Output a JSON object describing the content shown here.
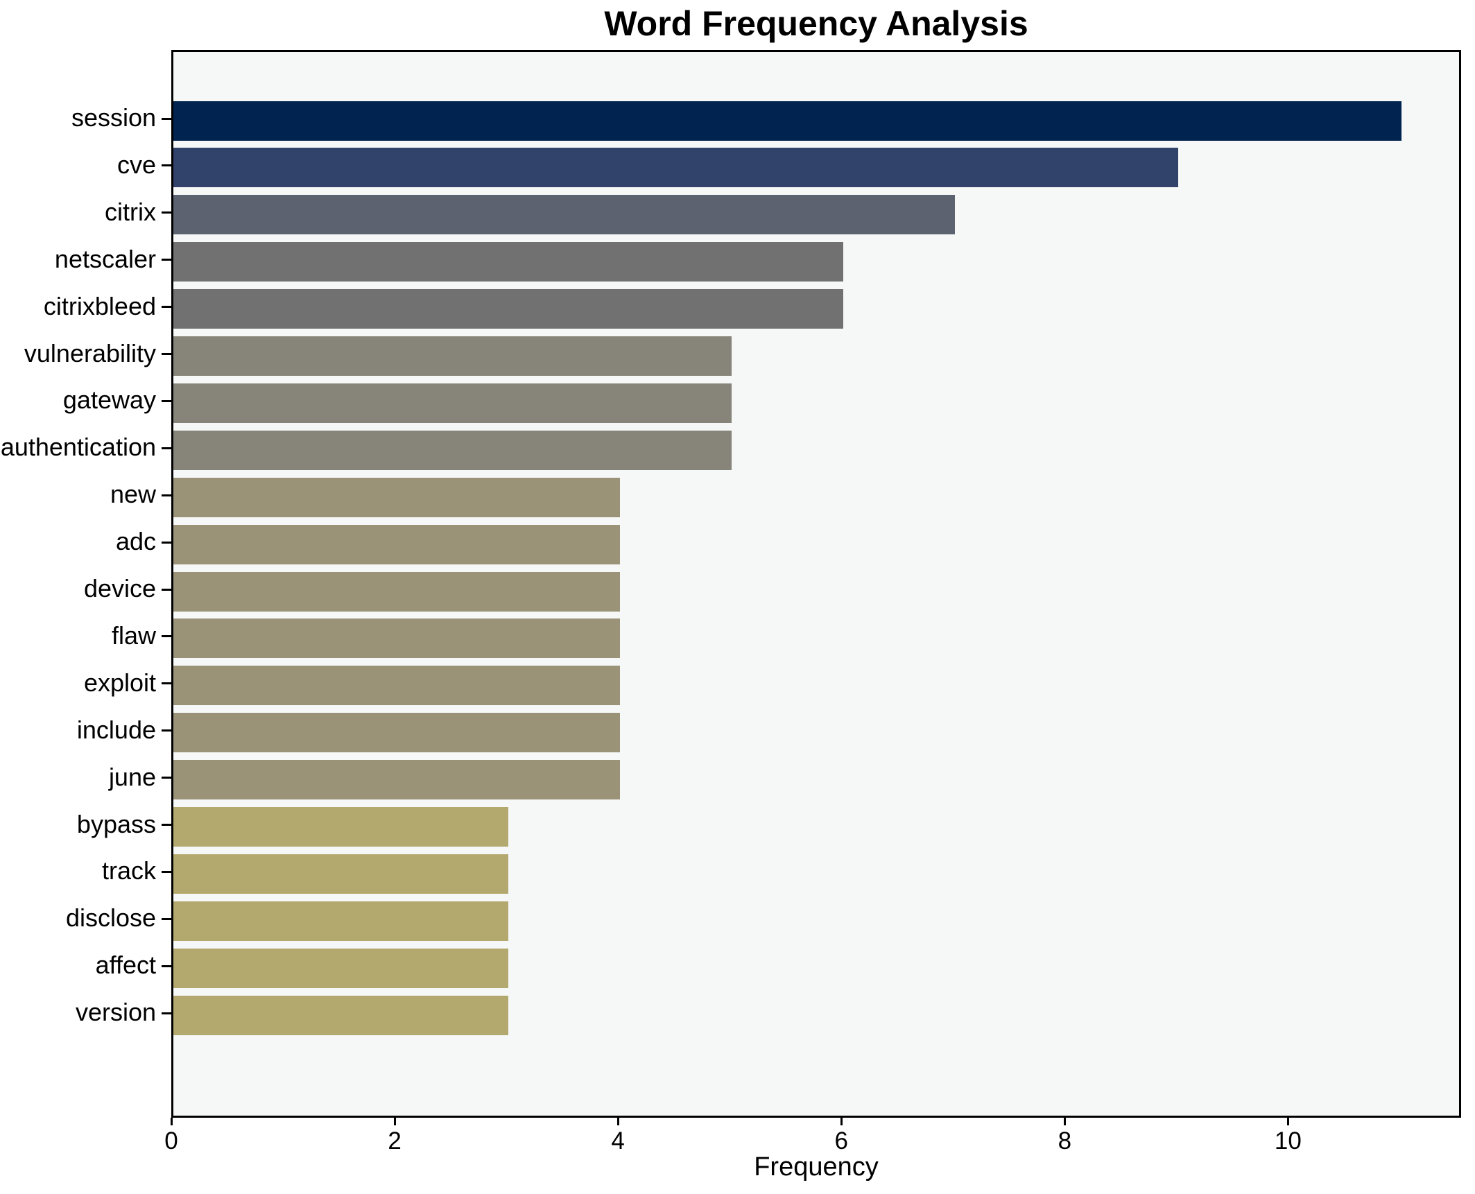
{
  "chart_data": {
    "type": "bar",
    "orientation": "horizontal",
    "title": "Word Frequency Analysis",
    "xlabel": "Frequency",
    "ylabel": "",
    "categories": [
      "session",
      "cve",
      "citrix",
      "netscaler",
      "citrixbleed",
      "vulnerability",
      "gateway",
      "authentication",
      "new",
      "adc",
      "device",
      "flaw",
      "exploit",
      "include",
      "june",
      "bypass",
      "track",
      "disclose",
      "affect",
      "version"
    ],
    "values": [
      11,
      9,
      7,
      6,
      6,
      5,
      5,
      5,
      4,
      4,
      4,
      4,
      4,
      4,
      4,
      3,
      3,
      3,
      3,
      3
    ],
    "bar_colors": [
      "#00234f",
      "#31436a",
      "#5c6270",
      "#717172",
      "#717172",
      "#87857a",
      "#87857a",
      "#87857a",
      "#9b9378",
      "#9b9378",
      "#9b9378",
      "#9b9378",
      "#9b9378",
      "#9b9378",
      "#9b9378",
      "#b3a96e",
      "#b3a96e",
      "#b3a96e",
      "#b3a96e",
      "#b3a96e"
    ],
    "xticks": [
      0,
      2,
      4,
      6,
      8,
      10
    ],
    "xlim": [
      0,
      11.55
    ],
    "grid": false,
    "legend": null,
    "colormap": "cividis",
    "plot_bg": "#f6f7f7",
    "fig_bg": "#ffffff",
    "spine_color": "#000000",
    "text_color": "#000000"
  }
}
